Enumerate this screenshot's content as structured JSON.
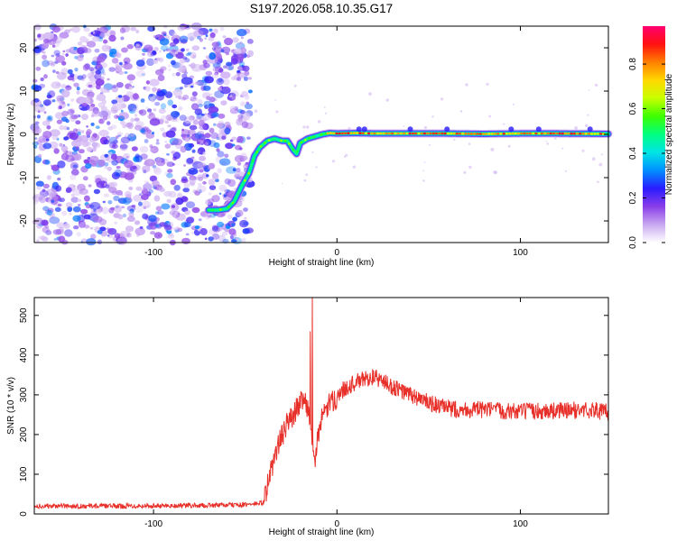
{
  "title": "S197.2026.058.10.35.G17",
  "chart_data": [
    {
      "type": "heatmap",
      "name": "spectrogram",
      "xlabel": "Height of straight line (km)",
      "ylabel": "Frequency (Hz)",
      "xlim": [
        -165,
        148
      ],
      "ylim": [
        -25,
        25
      ],
      "xticks": [
        -100,
        0,
        100
      ],
      "xtick_labels": [
        "-100",
        "0",
        "100"
      ],
      "yticks": [
        -20,
        -10,
        0,
        10,
        20
      ],
      "ytick_labels": [
        "-20",
        "-10",
        "0",
        "10",
        "20"
      ],
      "noise_region_x": [
        -165,
        -47
      ],
      "ridge": {
        "x": [
          -70,
          -65,
          -60,
          -56,
          -52,
          -48,
          -45,
          -42,
          -38,
          -34,
          -30,
          -27,
          -24,
          -22,
          -20,
          -16,
          -12,
          -8,
          -4,
          0,
          10,
          20,
          40,
          60,
          80,
          100,
          120,
          148
        ],
        "y": [
          -17.5,
          -17.5,
          -17.2,
          -15.5,
          -12,
          -9,
          -5,
          -3,
          -1.5,
          -1,
          -1.5,
          -1.5,
          -3.5,
          -4.5,
          -2,
          -1,
          -0.5,
          0,
          0.3,
          0.2,
          0.3,
          0.2,
          0.2,
          0.2,
          0.1,
          0.2,
          0.2,
          0.1
        ]
      },
      "colorbar": {
        "label": "Normalized spectral amplitude",
        "range": [
          0,
          0.97
        ],
        "ticks": [
          0.0,
          0.2,
          0.4,
          0.6,
          0.8
        ],
        "tick_labels": [
          "0.0",
          "0.2",
          "0.4",
          "0.6",
          "0.8"
        ],
        "colors": [
          "#ffffff",
          "#c9a8f0",
          "#8a3ee8",
          "#2a1cff",
          "#0090ff",
          "#00e5e5",
          "#00ff80",
          "#3cff00",
          "#c8ff00",
          "#ffd800",
          "#ff8000",
          "#ff1010",
          "#ff0070"
        ]
      }
    },
    {
      "type": "line",
      "name": "snr",
      "xlabel": "Height of straight line (km)",
      "ylabel": "SNR (10 * v/v)",
      "xlim": [
        -165,
        148
      ],
      "ylim": [
        0,
        545
      ],
      "xticks": [
        -100,
        0,
        100
      ],
      "xtick_labels": [
        "-100",
        "0",
        "100"
      ],
      "yticks": [
        0,
        100,
        200,
        300,
        400,
        500
      ],
      "ytick_labels": [
        "0",
        "100",
        "200",
        "300",
        "400",
        "500"
      ],
      "color": "#e8302a",
      "trend": {
        "x": [
          -165,
          -120,
          -80,
          -50,
          -40,
          -37,
          -33,
          -28,
          -22,
          -18,
          -15,
          -13,
          -12,
          -11,
          -10,
          -8,
          -5,
          0,
          5,
          10,
          15,
          20,
          25,
          30,
          40,
          50,
          60,
          80,
          100,
          120,
          140,
          148
        ],
        "y": [
          20,
          20,
          21,
          23,
          28,
          90,
          160,
          220,
          265,
          300,
          250,
          160,
          110,
          180,
          210,
          240,
          270,
          295,
          320,
          330,
          340,
          345,
          335,
          320,
          300,
          280,
          265,
          262,
          258,
          260,
          262,
          255
        ]
      },
      "spikes": [
        {
          "x": -13.5,
          "y": 545
        },
        {
          "x": -14.5,
          "y": 460
        }
      ]
    }
  ]
}
